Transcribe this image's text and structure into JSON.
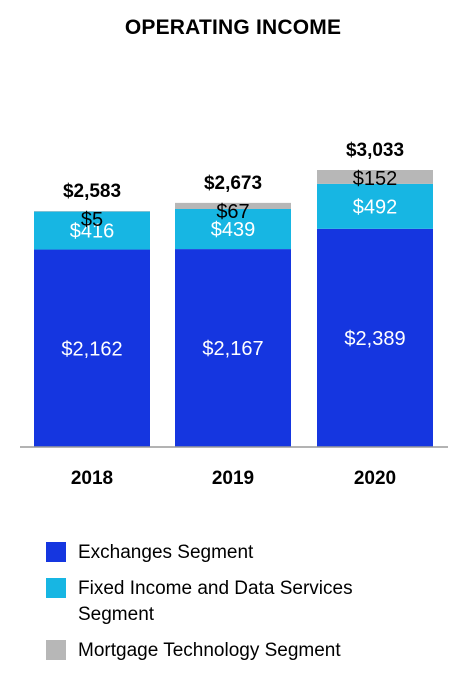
{
  "title": "OPERATING INCOME",
  "colors": {
    "exchanges": "#1536E0",
    "fixed_income": "#17B6E3",
    "mortgage": "#B7B7B7"
  },
  "legend": [
    {
      "label": "Exchanges Segment",
      "color": "#1536E0"
    },
    {
      "label": "Fixed Income and Data Services Segment",
      "color": "#17B6E3"
    },
    {
      "label": "Mortgage Technology Segment",
      "color": "#B7B7B7"
    }
  ],
  "chart_data": {
    "type": "bar",
    "stacked": true,
    "title": "OPERATING INCOME",
    "categories": [
      "2018",
      "2019",
      "2020"
    ],
    "series": [
      {
        "name": "Exchanges Segment",
        "values": [
          2162,
          2167,
          2389
        ],
        "labels": [
          "$2,162",
          "$2,167",
          "$2,389"
        ]
      },
      {
        "name": "Fixed Income and Data Services Segment",
        "values": [
          416,
          439,
          492
        ],
        "labels": [
          "$416",
          "$439",
          "$492"
        ]
      },
      {
        "name": "Mortgage Technology Segment",
        "values": [
          5,
          67,
          152
        ],
        "labels": [
          "$5",
          "$67",
          "$152"
        ]
      }
    ],
    "totals": [
      2583,
      2673,
      3033
    ],
    "total_labels": [
      "$2,583",
      "$2,673",
      "$3,033"
    ],
    "ylim": [
      0,
      3500
    ],
    "grid": false,
    "legend_position": "bottom"
  }
}
